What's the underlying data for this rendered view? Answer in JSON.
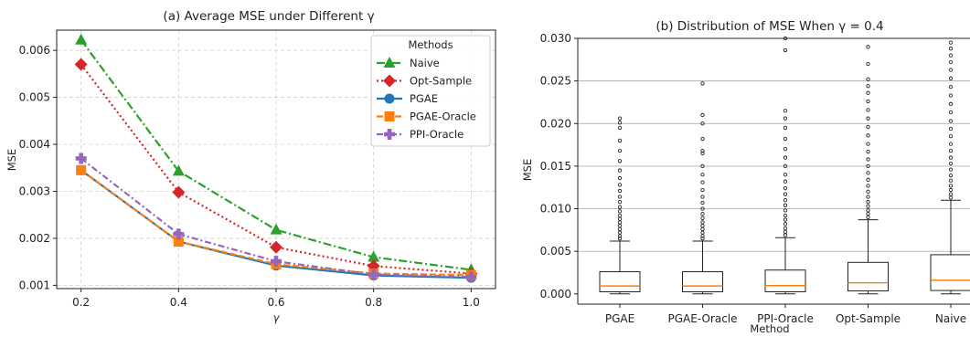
{
  "chart_data": [
    {
      "type": "line",
      "title": "(a) Average MSE under Different γ",
      "xlabel": "γ",
      "ylabel": "MSE",
      "x": [
        0.2,
        0.4,
        0.6,
        0.8,
        1.0
      ],
      "x_tick_labels": [
        "0.2",
        "0.4",
        "0.6",
        "0.8",
        "1.0"
      ],
      "xlim": [
        0.15,
        1.05
      ],
      "ylim": [
        0.00093,
        0.00643
      ],
      "y_ticks": [
        0.001,
        0.002,
        0.003,
        0.004,
        0.005,
        0.006
      ],
      "y_tick_labels": [
        "0.001",
        "0.002",
        "0.003",
        "0.004",
        "0.005",
        "0.006"
      ],
      "grid": true,
      "legend_title": "Methods",
      "legend_placement": "top-right",
      "series": [
        {
          "name": "Naive",
          "values": [
            0.00622,
            0.00343,
            0.00218,
            0.0016,
            0.00133
          ],
          "color": "#2ca02c",
          "dash": "dashdot",
          "marker": "triangle"
        },
        {
          "name": "Opt-Sample",
          "values": [
            0.0057,
            0.00298,
            0.00181,
            0.00141,
            0.00125
          ],
          "color": "#d62728",
          "dash": "dotted",
          "marker": "diamond"
        },
        {
          "name": "PGAE",
          "values": [
            0.00345,
            0.00193,
            0.00142,
            0.00121,
            0.00116
          ],
          "color": "#1f77b4",
          "dash": "solid",
          "marker": "circle"
        },
        {
          "name": "PGAE-Oracle",
          "values": [
            0.00345,
            0.00193,
            0.00145,
            0.00125,
            0.00122
          ],
          "color": "#ff7f0e",
          "dash": "dashed",
          "marker": "square"
        },
        {
          "name": "PPI-Oracle",
          "values": [
            0.0037,
            0.00209,
            0.00151,
            0.00123,
            0.00118
          ],
          "color": "#9467bd",
          "dash": "dashdot2",
          "marker": "plus"
        }
      ]
    },
    {
      "type": "box",
      "title": "(b) Distribution of MSE When γ = 0.4",
      "xlabel": "Method",
      "ylabel": "MSE",
      "ylim": [
        -0.0012,
        0.03
      ],
      "y_ticks": [
        0.0,
        0.005,
        0.01,
        0.015,
        0.02,
        0.025,
        0.03
      ],
      "y_tick_labels": [
        "0.000",
        "0.005",
        "0.010",
        "0.015",
        "0.020",
        "0.025",
        "0.030"
      ],
      "grid": "y",
      "median_color": "#ff7f0e",
      "categories": [
        "PGAE",
        "PGAE-Oracle",
        "PPI-Oracle",
        "Opt-Sample",
        "Naive"
      ],
      "boxes": [
        {
          "whisker_low": 0.0,
          "q1": 0.00025,
          "median": 0.00093,
          "q3": 0.0026,
          "whisker_high": 0.0062,
          "outliers": [
            0.0065,
            0.0068,
            0.0072,
            0.0076,
            0.008,
            0.0084,
            0.0088,
            0.0092,
            0.0097,
            0.0102,
            0.0108,
            0.0114,
            0.0121,
            0.0128,
            0.0136,
            0.0145,
            0.0156,
            0.0168,
            0.018,
            0.0195,
            0.0201,
            0.0206
          ]
        },
        {
          "whisker_low": 0.0,
          "q1": 0.00025,
          "median": 0.00093,
          "q3": 0.0026,
          "whisker_high": 0.0062,
          "outliers": [
            0.0065,
            0.0068,
            0.0072,
            0.0076,
            0.008,
            0.0084,
            0.0089,
            0.0094,
            0.01,
            0.0107,
            0.0114,
            0.0122,
            0.0131,
            0.014,
            0.015,
            0.0165,
            0.0168,
            0.0182,
            0.02,
            0.021,
            0.0247
          ]
        },
        {
          "whisker_low": 0.0,
          "q1": 0.00025,
          "median": 0.00097,
          "q3": 0.0028,
          "whisker_high": 0.0066,
          "outliers": [
            0.0069,
            0.0073,
            0.0077,
            0.0082,
            0.0087,
            0.0092,
            0.0098,
            0.0104,
            0.011,
            0.0117,
            0.0124,
            0.0132,
            0.014,
            0.015,
            0.016,
            0.017,
            0.0182,
            0.0195,
            0.0206,
            0.0215,
            0.0286,
            0.03
          ]
        },
        {
          "whisker_low": 0.0,
          "q1": 0.00035,
          "median": 0.0013,
          "q3": 0.0037,
          "whisker_high": 0.0087,
          "outliers": [
            0.009,
            0.0094,
            0.0098,
            0.0103,
            0.0108,
            0.0114,
            0.012,
            0.0127,
            0.0134,
            0.0142,
            0.015,
            0.0158,
            0.0167,
            0.0176,
            0.0186,
            0.0196,
            0.0206,
            0.0216,
            0.0226,
            0.0236,
            0.0244,
            0.0252,
            0.027,
            0.029
          ]
        },
        {
          "whisker_low": 0.0,
          "q1": 0.0004,
          "median": 0.0016,
          "q3": 0.0046,
          "whisker_high": 0.011,
          "outliers": [
            0.0113,
            0.0117,
            0.0122,
            0.0127,
            0.0133,
            0.0139,
            0.0146,
            0.0153,
            0.016,
            0.0168,
            0.0176,
            0.0185,
            0.0194,
            0.0203,
            0.0213,
            0.0223,
            0.0233,
            0.0243,
            0.0253,
            0.0263,
            0.0272,
            0.028,
            0.0288,
            0.0295
          ]
        }
      ]
    }
  ]
}
